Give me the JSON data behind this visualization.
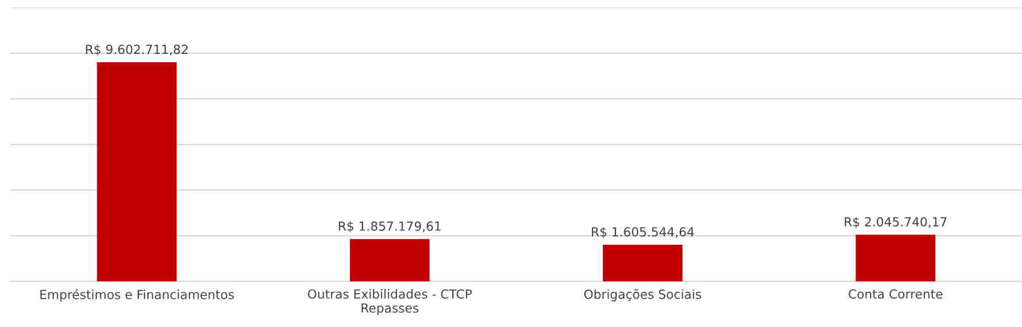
{
  "chart_data": {
    "type": "bar",
    "categories": [
      "Empréstimos e Financiamentos",
      "Outras Exibilidades - CTCP\nRepasses",
      "Obrigações Sociais",
      "Conta Corrente"
    ],
    "values": [
      9602711.82,
      1857179.61,
      1605544.64,
      2045740.17
    ],
    "value_labels": [
      "R$ 9.602.711,82",
      "R$ 1.857.179,61",
      "R$ 1.605.544,64",
      "R$ 2.045.740,17"
    ],
    "color": "#c00000",
    "ylim": [
      0,
      12000000
    ],
    "yticks": [
      {
        "value": 0,
        "label": null
      },
      {
        "value": 2000000,
        "label": null
      },
      {
        "value": 4000000,
        "label": null
      },
      {
        "value": 6000000,
        "label": null
      },
      {
        "value": 8000000,
        "label": null
      },
      {
        "value": 10000000,
        "label": null
      },
      {
        "value": 12000000,
        "label": null
      }
    ],
    "grid": "y",
    "tick_labels": "x",
    "legend": false
  }
}
